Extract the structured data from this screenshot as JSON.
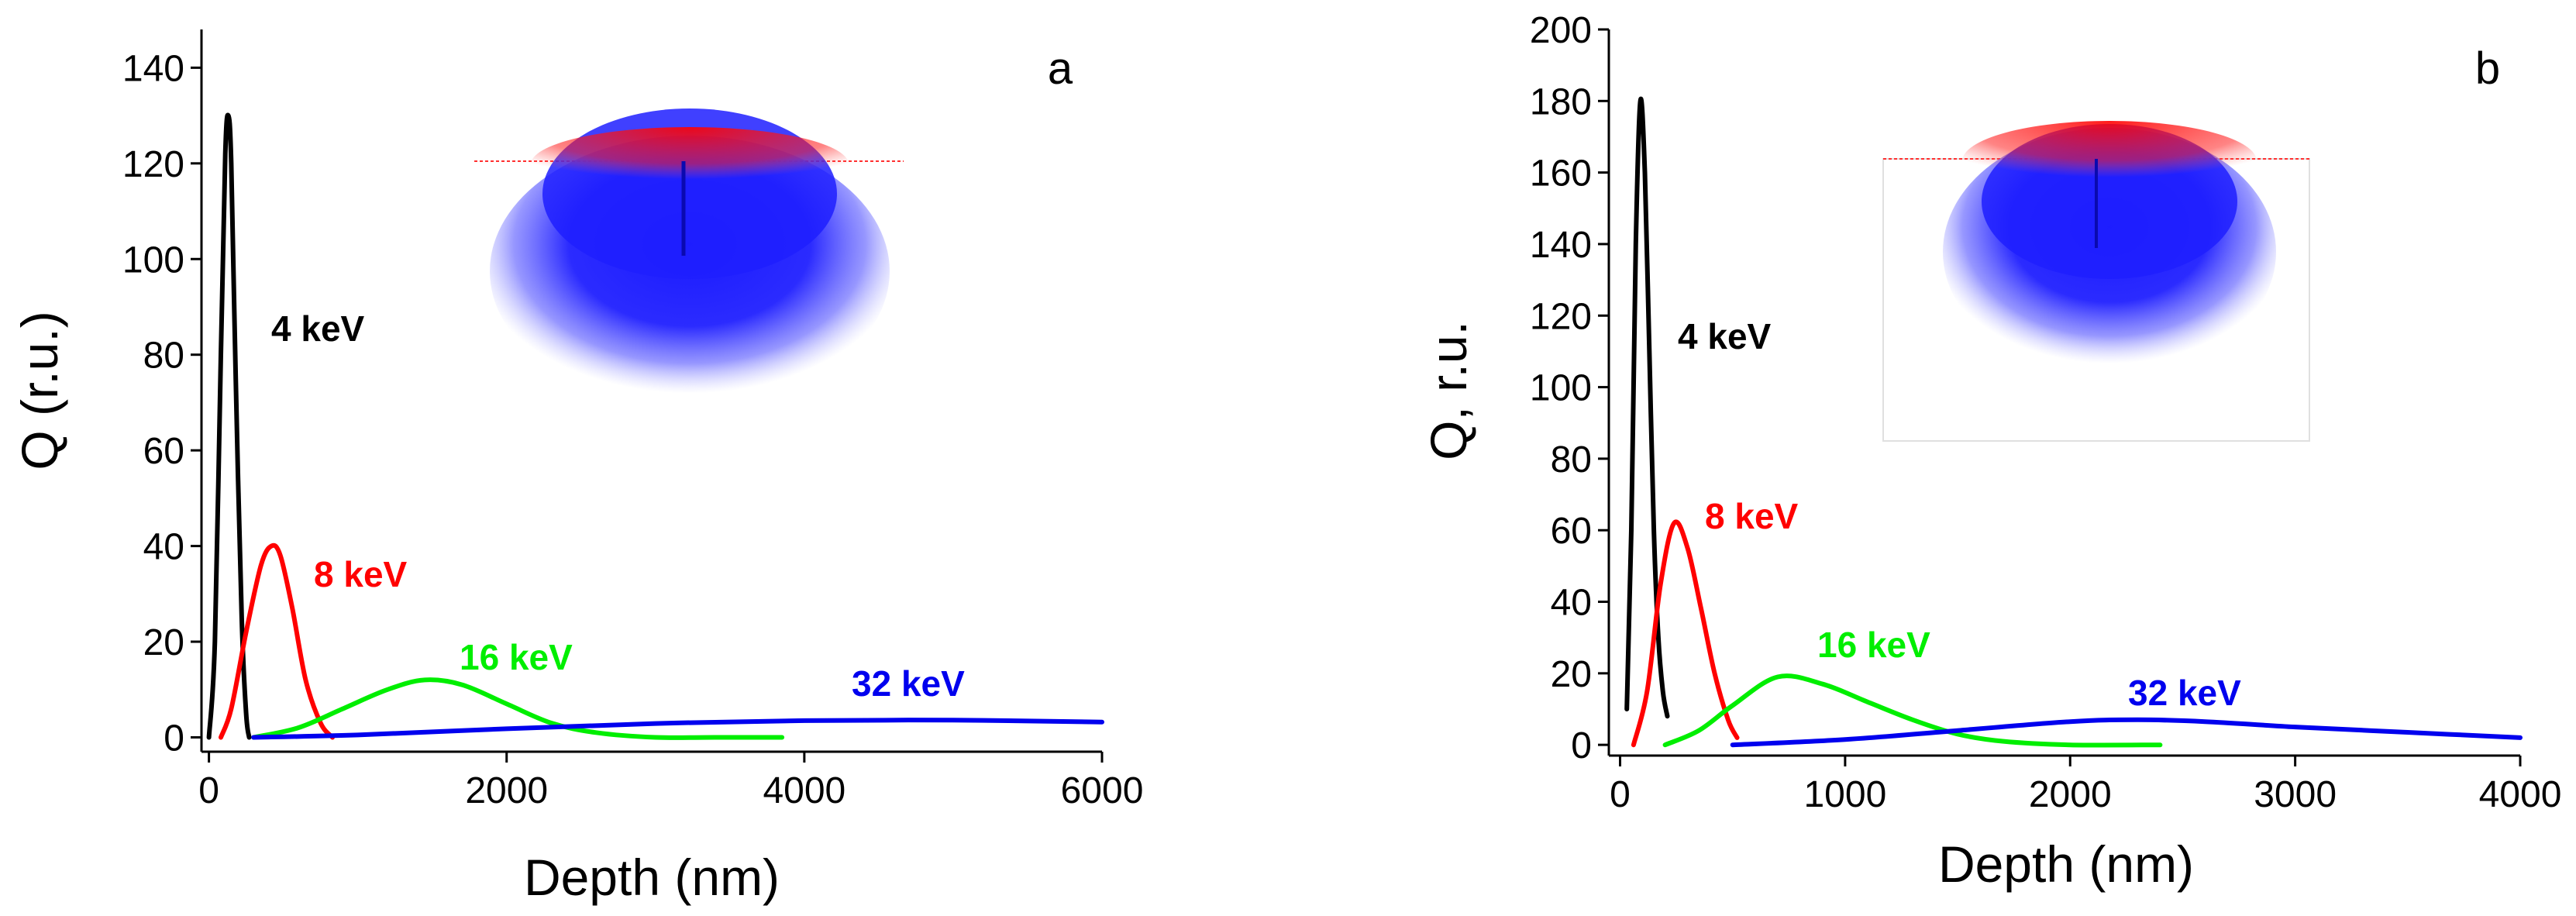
{
  "chart_data": [
    {
      "panel_label": "a",
      "type": "line",
      "xlabel": "Depth (nm)",
      "ylabel": "Q (r.u.)",
      "xlim": [
        -50,
        6000
      ],
      "ylim": [
        -3,
        148
      ],
      "xticks": [
        "0",
        "2000",
        "4000",
        "6000"
      ],
      "yticks": [
        "0",
        "20",
        "40",
        "60",
        "80",
        "100",
        "120",
        "140"
      ],
      "series": [
        {
          "name": "4 keV",
          "label": "4 keV",
          "color": "#000000",
          "x": [
            0,
            40,
            80,
            110,
            130,
            150,
            180,
            220,
            250,
            270
          ],
          "y": [
            0,
            20,
            80,
            122,
            130,
            120,
            75,
            25,
            5,
            0
          ]
        },
        {
          "name": "8 keV",
          "label": "8 keV",
          "color": "#ff0000",
          "x": [
            80,
            150,
            250,
            350,
            420,
            480,
            560,
            650,
            750,
            830
          ],
          "y": [
            0,
            6,
            22,
            36,
            40,
            38,
            27,
            12,
            3,
            0
          ]
        },
        {
          "name": "16 keV",
          "label": "16 keV",
          "color": "#00ee00",
          "x": [
            300,
            600,
            900,
            1200,
            1450,
            1700,
            2000,
            2300,
            2600,
            3000,
            3400,
            3850
          ],
          "y": [
            0,
            2,
            6,
            10,
            12,
            11,
            7,
            3,
            1,
            0,
            0,
            0
          ]
        },
        {
          "name": "32 keV",
          "label": "32 keV",
          "color": "#0000ee",
          "x": [
            300,
            1000,
            2000,
            3000,
            4000,
            5000,
            6000
          ],
          "y": [
            0,
            0.5,
            1.8,
            2.9,
            3.5,
            3.6,
            3.2
          ]
        }
      ]
    },
    {
      "panel_label": "b",
      "type": "line",
      "xlabel": "Depth (nm)",
      "ylabel": "Q, r.u.",
      "xlim": [
        -50,
        4000
      ],
      "ylim": [
        -3,
        200
      ],
      "xticks": [
        "0",
        "1000",
        "2000",
        "3000",
        "4000"
      ],
      "yticks": [
        "0",
        "20",
        "40",
        "60",
        "80",
        "100",
        "120",
        "140",
        "160",
        "180",
        "200"
      ],
      "series": [
        {
          "name": "4 keV",
          "label": "4 keV",
          "color": "#000000",
          "x": [
            30,
            50,
            70,
            90,
            110,
            130,
            150,
            170,
            190,
            210
          ],
          "y": [
            10,
            60,
            140,
            180,
            160,
            110,
            60,
            30,
            15,
            8
          ]
        },
        {
          "name": "8 keV",
          "label": "8 keV",
          "color": "#ff0000",
          "x": [
            60,
            120,
            180,
            240,
            300,
            360,
            420,
            480,
            520
          ],
          "y": [
            0,
            15,
            45,
            62,
            55,
            38,
            20,
            7,
            2
          ]
        },
        {
          "name": "16 keV",
          "label": "16 keV",
          "color": "#00ee00",
          "x": [
            200,
            350,
            500,
            700,
            900,
            1100,
            1300,
            1500,
            1700,
            2000,
            2400
          ],
          "y": [
            0,
            4,
            11,
            19,
            17,
            12,
            7,
            3,
            1,
            0,
            0
          ]
        },
        {
          "name": "32 keV",
          "label": "32 keV",
          "color": "#0000ee",
          "x": [
            500,
            1000,
            1500,
            2000,
            2300,
            2600,
            3000,
            3500,
            4000
          ],
          "y": [
            0,
            1.5,
            4,
            6.5,
            7,
            6.5,
            5,
            3.5,
            2
          ]
        }
      ]
    }
  ]
}
